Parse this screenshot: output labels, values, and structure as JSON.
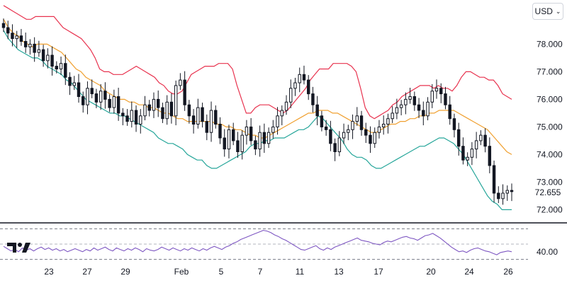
{
  "header": {
    "currency": "USD"
  },
  "last_price": "72.655",
  "colors": {
    "upper_band": "#e8334f",
    "middle_band": "#f0a030",
    "lower_band": "#26a69a",
    "candle": "#131722",
    "oscillator": "#7e57c2",
    "separator": "#131722"
  },
  "icons": {
    "logo": "tradingview-logo",
    "dropdown": "chevron-down-icon"
  },
  "chart_data": [
    {
      "type": "candlestick",
      "title": "",
      "y_axis_ticks": [
        "78.000",
        "77.000",
        "76.000",
        "75.000",
        "74.000",
        "73.000",
        "72.000"
      ],
      "x_axis_ticks": [
        "23",
        "27",
        "29",
        "Feb",
        "5",
        "7",
        "11",
        "13",
        "17",
        "20",
        "24",
        "26"
      ],
      "ylim": [
        71.6,
        79.6
      ],
      "grid": false,
      "close": [
        78.6,
        78.4,
        78.2,
        78.3,
        78.1,
        77.9,
        78.0,
        77.7,
        77.8,
        77.4,
        77.6,
        77.2,
        77.1,
        77.3,
        76.8,
        76.5,
        76.6,
        76.1,
        75.8,
        76.4,
        76.2,
        75.9,
        76.3,
        76.0,
        75.7,
        76.1,
        75.5,
        75.4,
        75.2,
        75.6,
        75.1,
        75.4,
        75.8,
        75.6,
        76.0,
        75.7,
        75.3,
        75.9,
        75.4,
        76.5,
        76.7,
        75.8,
        75.4,
        75.1,
        75.7,
        75.2,
        74.8,
        75.6,
        75.1,
        74.6,
        74.2,
        74.9,
        74.5,
        74.1,
        74.7,
        75.0,
        74.5,
        74.2,
        74.8,
        74.4,
        74.8,
        75.0,
        75.4,
        75.6,
        75.9,
        76.4,
        76.6,
        76.9,
        76.7,
        76.2,
        75.8,
        75.4,
        75.0,
        74.9,
        74.4,
        74.1,
        74.6,
        74.8,
        74.9,
        75.2,
        75.4,
        74.9,
        74.7,
        74.4,
        74.8,
        75.0,
        75.1,
        75.3,
        75.5,
        75.7,
        75.8,
        76.0,
        76.1,
        75.8,
        75.6,
        75.4,
        75.9,
        76.3,
        76.4,
        76.2,
        75.8,
        75.3,
        74.9,
        74.3,
        73.8,
        73.9,
        74.2,
        74.5,
        74.7,
        74.3,
        73.6,
        72.6,
        72.4,
        72.6,
        72.7,
        72.655
      ],
      "upper_band": [
        79.4,
        79.3,
        79.2,
        79.1,
        79.0,
        78.9,
        78.9,
        79.0,
        79.0,
        79.0,
        79.0,
        79.0,
        78.8,
        78.6,
        78.5,
        78.4,
        78.3,
        78.2,
        78.0,
        77.8,
        77.5,
        77.1,
        77.0,
        77.0,
        76.9,
        76.9,
        76.9,
        77.0,
        77.1,
        77.2,
        77.1,
        77.0,
        76.9,
        76.8,
        76.6,
        76.5,
        76.3,
        76.2,
        76.2,
        76.3,
        76.6,
        76.9,
        77.0,
        77.1,
        77.2,
        77.2,
        77.2,
        77.3,
        77.3,
        77.3,
        77.1,
        76.5,
        76.0,
        75.5,
        75.5,
        75.7,
        75.8,
        75.8,
        75.8,
        75.7,
        75.6,
        75.5,
        75.6,
        75.8,
        76.0,
        76.2,
        76.4,
        76.7,
        76.9,
        77.1,
        77.1,
        77.1,
        77.3,
        77.3,
        77.3,
        77.3,
        77.2,
        77.0,
        76.4,
        75.7,
        75.4,
        75.3,
        75.4,
        75.5,
        75.6,
        75.8,
        75.9,
        76.1,
        76.2,
        76.3,
        76.4,
        76.5,
        76.5,
        76.5,
        76.4,
        76.5,
        76.4,
        76.4,
        76.3,
        76.5,
        76.8,
        77.0,
        77.0,
        76.9,
        76.8,
        76.8,
        76.7,
        76.7,
        76.5,
        76.2,
        76.1,
        76.0
      ],
      "middle_band": [
        78.9,
        78.6,
        78.4,
        78.3,
        78.1,
        78.0,
        77.9,
        78.0,
        78.0,
        78.0,
        77.9,
        77.8,
        77.7,
        77.5,
        77.3,
        77.1,
        77.0,
        76.8,
        76.7,
        76.6,
        76.5,
        76.3,
        76.2,
        76.1,
        76.0,
        76.0,
        75.9,
        75.9,
        75.8,
        75.8,
        75.7,
        75.7,
        75.6,
        75.5,
        75.5,
        75.4,
        75.3,
        75.3,
        75.2,
        75.2,
        75.2,
        75.2,
        75.2,
        75.2,
        75.1,
        75.1,
        75.0,
        75.0,
        74.9,
        74.9,
        74.8,
        74.7,
        74.7,
        74.6,
        74.6,
        74.7,
        74.8,
        74.9,
        75.0,
        75.1,
        75.2,
        75.3,
        75.4,
        75.5,
        75.5,
        75.6,
        75.6,
        75.6,
        75.5,
        75.5,
        75.4,
        75.3,
        75.2,
        75.1,
        75.0,
        74.9,
        74.8,
        74.8,
        74.9,
        75.0,
        75.1,
        75.1,
        75.2,
        75.2,
        75.3,
        75.3,
        75.4,
        75.4,
        75.5,
        75.5,
        75.6,
        75.6,
        75.6,
        75.6,
        75.5,
        75.4,
        75.3,
        75.2,
        75.1,
        75.0,
        74.9,
        74.7,
        74.5,
        74.3,
        74.1,
        74.0
      ],
      "lower_band": [
        78.5,
        78.2,
        78.0,
        77.8,
        77.7,
        77.6,
        77.5,
        77.5,
        77.4,
        77.2,
        77.1,
        77.0,
        76.9,
        76.7,
        76.6,
        76.4,
        76.2,
        76.0,
        75.9,
        75.8,
        75.7,
        75.6,
        75.5,
        75.5,
        75.4,
        75.4,
        75.3,
        75.2,
        75.1,
        75.0,
        74.9,
        74.8,
        74.6,
        74.5,
        74.4,
        74.4,
        74.3,
        74.2,
        74.0,
        73.9,
        73.8,
        73.8,
        73.6,
        73.5,
        73.5,
        73.6,
        73.7,
        73.8,
        73.9,
        74.0,
        74.1,
        74.3,
        74.4,
        74.4,
        74.5,
        74.5,
        74.6,
        74.6,
        74.6,
        74.7,
        74.8,
        74.9,
        74.9,
        75.0,
        75.2,
        75.4,
        75.3,
        75.1,
        74.9,
        74.7,
        74.5,
        74.2,
        74.0,
        73.9,
        73.9,
        73.8,
        73.6,
        73.5,
        73.5,
        73.6,
        73.7,
        73.8,
        73.9,
        74.0,
        74.1,
        74.2,
        74.3,
        74.3,
        74.4,
        74.5,
        74.6,
        74.6,
        74.5,
        74.4,
        74.2,
        74.0,
        73.7,
        73.4,
        73.1,
        72.8,
        72.5,
        72.3,
        72.2,
        72.0,
        72.0,
        72.0
      ],
      "x_range": [
        0,
        129
      ]
    },
    {
      "type": "line",
      "title": "",
      "y_axis_ticks": [
        "40.00"
      ],
      "levels": [
        70,
        50,
        30
      ],
      "ylim": [
        25,
        75
      ],
      "series": [
        {
          "values": [
            47,
            44,
            41,
            43,
            40,
            45,
            42,
            44,
            41,
            44,
            46,
            43,
            45,
            42,
            44,
            41,
            43,
            40,
            42,
            44,
            42,
            40,
            43,
            41,
            45,
            42,
            44,
            46,
            43,
            41,
            45,
            43,
            41,
            44,
            42,
            45,
            43,
            40,
            44,
            42,
            41,
            43,
            46,
            44,
            42,
            45,
            43,
            41,
            44,
            42,
            45,
            43,
            41,
            44,
            42,
            45,
            47,
            45,
            43,
            46,
            48,
            51,
            53,
            56,
            58,
            60,
            62,
            64,
            66,
            68,
            67,
            65,
            62,
            60,
            57,
            55,
            52,
            49,
            46,
            43,
            42,
            44,
            46,
            48,
            44,
            42,
            45,
            43,
            46,
            48,
            50,
            52,
            54,
            56,
            58,
            55,
            54,
            53,
            51,
            50,
            49,
            52,
            54,
            53,
            55,
            57,
            59,
            60,
            58,
            57,
            55,
            58,
            61,
            62,
            64,
            61,
            58,
            54,
            50,
            46,
            43,
            40,
            41,
            39,
            42,
            44,
            45,
            43,
            41,
            40,
            38,
            36,
            39,
            40,
            41,
            40
          ]
        }
      ]
    }
  ]
}
